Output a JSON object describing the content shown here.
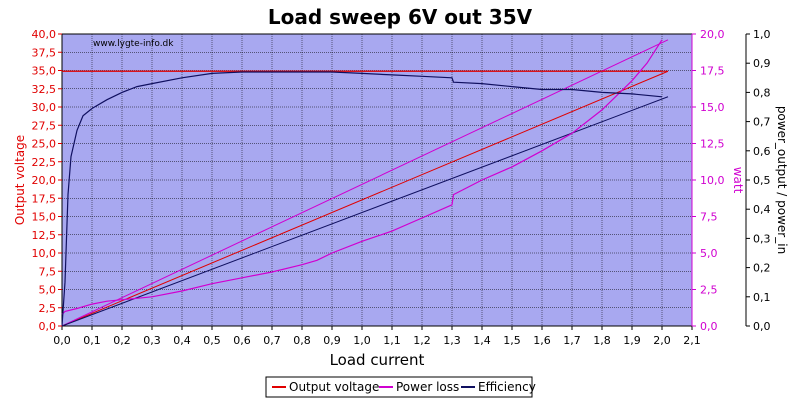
{
  "chart_data": {
    "type": "line",
    "title": "Load sweep 6V out 35V",
    "watermark": "www.lygte-info.dk",
    "xlabel": "Load current",
    "xlim": [
      0.0,
      2.1
    ],
    "x_ticks": [
      "0,0",
      "0,1",
      "0,2",
      "0,3",
      "0,4",
      "0,5",
      "0,6",
      "0,7",
      "0,8",
      "0,9",
      "1,0",
      "1,1",
      "1,2",
      "1,3",
      "1,4",
      "1,5",
      "1,6",
      "1,7",
      "1,8",
      "1,9",
      "2,0",
      "2,1"
    ],
    "y_left": {
      "label": "Output voltage",
      "range": [
        0,
        40
      ],
      "ticks": [
        "0,0",
        "2,5",
        "5,0",
        "7,5",
        "10,0",
        "12,5",
        "15,0",
        "17,5",
        "20,0",
        "22,5",
        "25,0",
        "27,5",
        "30,0",
        "32,5",
        "35,0",
        "37,5",
        "40,0"
      ],
      "color": "#e00000"
    },
    "y_right1": {
      "label": "watt",
      "range": [
        0,
        20
      ],
      "ticks": [
        "0,0",
        "2,5",
        "5,0",
        "7,5",
        "10,0",
        "12,5",
        "15,0",
        "17,5",
        "20,0"
      ],
      "color": "#d000d0"
    },
    "y_right2": {
      "label": "power_output / power_in",
      "range": [
        0,
        1
      ],
      "ticks": [
        "0,0",
        "0,1",
        "0,2",
        "0,3",
        "0,4",
        "0,5",
        "0,6",
        "0,7",
        "0,8",
        "0,9",
        "1,0"
      ],
      "color": "#000000"
    },
    "grid": true,
    "legend_position": "bottom",
    "colors": {
      "background": "#a8a8f0",
      "grid": "#000000",
      "voltage": "#e00000",
      "power_loss": "#d000d0",
      "efficiency": "#101060"
    },
    "series": [
      {
        "name": "Output voltage",
        "axis": "left",
        "x": [
          0.0,
          0.01,
          0.05,
          0.1,
          0.2,
          0.3,
          0.4,
          0.5,
          0.6,
          0.7,
          0.8,
          0.9,
          1.0,
          1.1,
          1.2,
          1.3,
          1.4,
          1.5,
          1.6,
          1.7,
          1.8,
          1.9,
          2.0
        ],
        "y": [
          34.9,
          34.9,
          34.9,
          34.9,
          34.9,
          34.9,
          34.9,
          34.9,
          34.9,
          34.9,
          34.9,
          34.9,
          34.9,
          34.9,
          34.9,
          34.9,
          34.9,
          34.9,
          34.9,
          34.9,
          34.9,
          34.9,
          34.9
        ]
      },
      {
        "name": "Power loss",
        "axis": "right1",
        "x": [
          0.0,
          0.01,
          0.05,
          0.1,
          0.15,
          0.2,
          0.25,
          0.3,
          0.4,
          0.5,
          0.6,
          0.7,
          0.8,
          0.85,
          0.9,
          1.0,
          1.1,
          1.2,
          1.3,
          1.305,
          1.4,
          1.5,
          1.6,
          1.7,
          1.8,
          1.9,
          1.95,
          2.0
        ],
        "y": [
          0.8,
          1.0,
          1.2,
          1.5,
          1.7,
          1.8,
          1.9,
          2.0,
          2.4,
          2.9,
          3.3,
          3.7,
          4.2,
          4.5,
          5.0,
          5.8,
          6.5,
          7.4,
          8.3,
          9.0,
          10.0,
          10.9,
          12.0,
          13.2,
          14.8,
          16.8,
          18.0,
          19.6
        ]
      },
      {
        "name": "Efficiency",
        "axis": "right2",
        "x": [
          0.0,
          0.01,
          0.015,
          0.02,
          0.03,
          0.05,
          0.07,
          0.1,
          0.15,
          0.2,
          0.25,
          0.3,
          0.4,
          0.5,
          0.6,
          0.7,
          0.8,
          0.9,
          1.0,
          1.1,
          1.2,
          1.3,
          1.305,
          1.4,
          1.5,
          1.6,
          1.7,
          1.8,
          1.9,
          2.0
        ],
        "y": [
          0.0,
          0.15,
          0.3,
          0.45,
          0.58,
          0.67,
          0.72,
          0.745,
          0.775,
          0.8,
          0.82,
          0.83,
          0.85,
          0.865,
          0.87,
          0.87,
          0.87,
          0.87,
          0.865,
          0.86,
          0.855,
          0.85,
          0.835,
          0.83,
          0.82,
          0.81,
          0.81,
          0.8,
          0.795,
          0.785
        ]
      }
    ],
    "reference_lines": [
      {
        "axis": "left",
        "from": [
          0.0,
          34.9
        ],
        "to": [
          2.02,
          34.9
        ],
        "color": "#e00000"
      },
      {
        "axis": "left",
        "from": [
          0.0,
          0.0
        ],
        "to": [
          2.02,
          34.9
        ],
        "color": "#e00000"
      },
      {
        "axis": "right1",
        "from": [
          0.0,
          0.0
        ],
        "to": [
          2.02,
          19.6
        ],
        "color": "#d000d0"
      },
      {
        "axis": "right2",
        "from": [
          0.0,
          0.0
        ],
        "to": [
          2.02,
          0.785
        ],
        "color": "#101060"
      }
    ],
    "legend": [
      {
        "label": "Output voltage",
        "color": "#e00000"
      },
      {
        "label": "Power loss",
        "color": "#d000d0"
      },
      {
        "label": "Efficiency",
        "color": "#101060"
      }
    ]
  }
}
